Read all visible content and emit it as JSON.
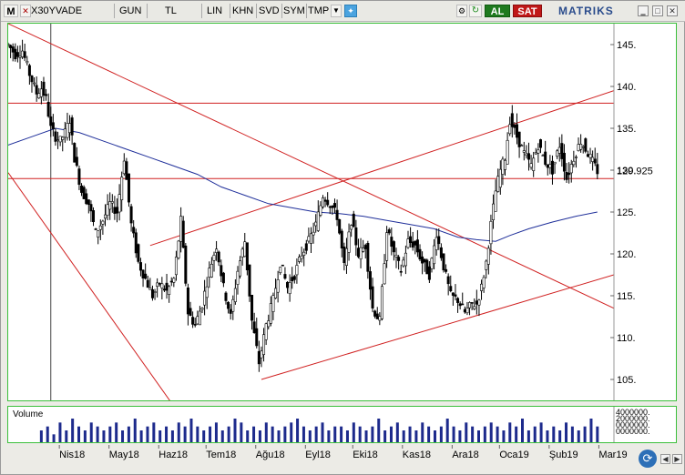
{
  "toolbar": {
    "menu_letter": "M",
    "symbol": "X30YVADE",
    "period": "GUN",
    "currency": "TL",
    "scale": "LIN",
    "khn": "KHN",
    "svd": "SVD",
    "sym": "SYM",
    "tmp": "TMP",
    "buy_label": "AL",
    "sell_label": "SAT",
    "brand": "MATRIKS",
    "colors": {
      "buy": "#1f7a1f",
      "sell": "#c01818"
    }
  },
  "volume": {
    "title": "Volume",
    "axis_labels": [
      "4000000.",
      "2000000.",
      "0000000.",
      "0000000."
    ]
  },
  "chart_data": {
    "type": "candlestick",
    "instrument": "X30YVADE",
    "y_ticks": [
      145,
      140,
      135,
      130,
      125,
      120,
      115,
      110,
      105
    ],
    "ylim": [
      102.5,
      147.5
    ],
    "last_price_label": "129.925",
    "last_price": 129.925,
    "x_ticks": [
      "Nis18",
      "May18",
      "Haz18",
      "Tem18",
      "Ağu18",
      "Eyl18",
      "Eki18",
      "Kas18",
      "Ara18",
      "Oca19",
      "Şub19",
      "Mar19"
    ],
    "x_tick_pos": [
      2,
      23,
      44,
      64,
      85,
      106,
      126,
      147,
      168,
      188,
      209,
      230
    ],
    "x_range": [
      -20,
      236
    ],
    "close_series": [
      [
        -20,
        145.0
      ],
      [
        -17,
        143.8
      ],
      [
        -14,
        144.3
      ],
      [
        -11,
        141.5
      ],
      [
        -8,
        139.2
      ],
      [
        -6,
        139.8
      ],
      [
        -4,
        138.5
      ],
      [
        -2,
        135.0
      ],
      [
        0,
        134.0
      ],
      [
        2,
        133.5
      ],
      [
        4,
        134.5
      ],
      [
        6,
        136.0
      ],
      [
        8,
        131.5
      ],
      [
        11,
        127.5
      ],
      [
        14,
        126.0
      ],
      [
        17,
        122.5
      ],
      [
        20,
        124.0
      ],
      [
        23,
        126.0
      ],
      [
        26,
        125.0
      ],
      [
        29,
        131.5
      ],
      [
        32,
        123.5
      ],
      [
        35,
        119.0
      ],
      [
        38,
        117.0
      ],
      [
        41,
        115.0
      ],
      [
        44,
        116.5
      ],
      [
        47,
        115.5
      ],
      [
        50,
        117.0
      ],
      [
        53,
        124.0
      ],
      [
        56,
        113.0
      ],
      [
        59,
        111.5
      ],
      [
        62,
        114.0
      ],
      [
        65,
        118.0
      ],
      [
        68,
        121.0
      ],
      [
        71,
        116.0
      ],
      [
        74,
        112.5
      ],
      [
        77,
        118.0
      ],
      [
        80,
        121.5
      ],
      [
        83,
        112.0
      ],
      [
        86,
        107.0
      ],
      [
        89,
        111.5
      ],
      [
        92,
        114.5
      ],
      [
        95,
        119.0
      ],
      [
        98,
        116.0
      ],
      [
        101,
        117.5
      ],
      [
        104,
        120.0
      ],
      [
        107,
        121.5
      ],
      [
        110,
        123.5
      ],
      [
        113,
        127.0
      ],
      [
        116,
        126.0
      ],
      [
        119,
        124.5
      ],
      [
        122,
        118.5
      ],
      [
        125,
        124.0
      ],
      [
        128,
        120.0
      ],
      [
        131,
        121.0
      ],
      [
        134,
        113.5
      ],
      [
        137,
        112.0
      ],
      [
        140,
        123.0
      ],
      [
        143,
        120.0
      ],
      [
        146,
        118.0
      ],
      [
        149,
        121.5
      ],
      [
        152,
        121.0
      ],
      [
        155,
        119.0
      ],
      [
        158,
        117.5
      ],
      [
        161,
        122.5
      ],
      [
        164,
        118.5
      ],
      [
        167,
        115.0
      ],
      [
        170,
        114.5
      ],
      [
        173,
        113.0
      ],
      [
        176,
        114.0
      ],
      [
        178,
        114.0
      ],
      [
        180,
        116.0
      ],
      [
        182,
        119.0
      ],
      [
        184,
        123.5
      ],
      [
        186,
        127.5
      ],
      [
        188,
        130.0
      ],
      [
        190,
        131.5
      ],
      [
        192,
        136.0
      ],
      [
        195,
        134.0
      ],
      [
        198,
        132.0
      ],
      [
        201,
        130.5
      ],
      [
        204,
        133.0
      ],
      [
        207,
        131.0
      ],
      [
        210,
        130.0
      ],
      [
        213,
        133.0
      ],
      [
        216,
        129.0
      ],
      [
        219,
        131.5
      ],
      [
        222,
        133.5
      ],
      [
        225,
        132.0
      ],
      [
        227,
        131.0
      ],
      [
        229,
        129.9
      ]
    ],
    "moving_average": [
      [
        -20,
        133.0
      ],
      [
        -10,
        134.0
      ],
      [
        0,
        135.0
      ],
      [
        10,
        134.5
      ],
      [
        20,
        133.5
      ],
      [
        30,
        132.5
      ],
      [
        40,
        131.5
      ],
      [
        50,
        130.5
      ],
      [
        60,
        129.5
      ],
      [
        70,
        128.0
      ],
      [
        80,
        127.0
      ],
      [
        90,
        126.0
      ],
      [
        100,
        125.5
      ],
      [
        110,
        125.0
      ],
      [
        120,
        124.8
      ],
      [
        130,
        124.5
      ],
      [
        140,
        124.0
      ],
      [
        150,
        123.5
      ],
      [
        160,
        123.0
      ],
      [
        170,
        122.0
      ],
      [
        178,
        121.7
      ],
      [
        186,
        121.5
      ],
      [
        192,
        122.2
      ],
      [
        200,
        123.0
      ],
      [
        210,
        123.8
      ],
      [
        220,
        124.5
      ],
      [
        229,
        125.0
      ]
    ],
    "trend_lines": [
      {
        "from": [
          -20,
          147.5
        ],
        "to": [
          236,
          113.5
        ],
        "color": "#d02020"
      },
      {
        "from": [
          -20,
          129.7
        ],
        "to": [
          52,
          101.0
        ],
        "color": "#d02020"
      },
      {
        "from": [
          87,
          105.0
        ],
        "to": [
          236,
          117.5
        ],
        "color": "#d02020"
      },
      {
        "from": [
          40,
          121.0
        ],
        "to": [
          236,
          139.5
        ],
        "color": "#d02020"
      }
    ],
    "horizontal_levels": [
      138.0,
      129.0
    ],
    "volume_values": [
      3,
      4,
      2,
      5,
      3,
      6,
      4,
      3,
      5,
      4,
      3,
      4,
      5,
      3,
      4,
      6,
      3,
      4,
      5,
      3,
      4,
      3,
      5,
      4,
      6,
      4,
      3,
      4,
      5,
      3,
      4,
      6,
      5,
      3,
      4,
      3,
      5,
      4,
      3,
      4,
      5,
      6,
      4,
      3,
      4,
      5,
      3,
      4,
      4,
      3,
      5,
      4,
      3,
      4,
      6,
      3,
      4,
      5,
      3,
      4,
      3,
      5,
      4,
      3,
      4,
      6,
      4,
      3,
      5,
      4,
      3,
      4,
      5,
      4,
      3,
      5,
      4,
      6,
      3,
      4,
      5,
      3,
      4,
      3,
      5,
      4,
      3,
      4,
      6,
      4
    ]
  }
}
